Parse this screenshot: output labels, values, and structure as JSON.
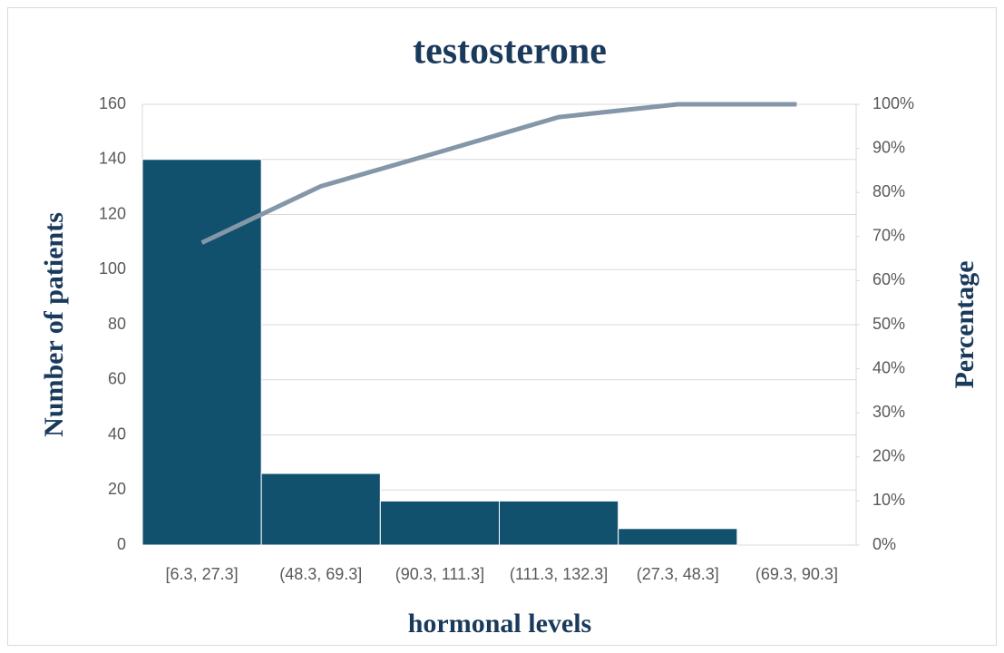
{
  "chart_data": {
    "type": "pareto",
    "title": "testosterone",
    "x_label": "hormonal levels",
    "y_label": "Number of patients",
    "y2_label": "Percentage",
    "categories": [
      "[6.3, 27.3]",
      "(48.3, 69.3]",
      "(90.3, 111.3]",
      "(111.3, 132.3]",
      "(27.3, 48.3]",
      "(69.3, 90.3]"
    ],
    "series": [
      {
        "color": "#12516e",
        "values": [
          140,
          26,
          16,
          16,
          6,
          0
        ]
      },
      {
        "color": "#8497a8",
        "axis": "y2",
        "values": [
          68.6,
          81.4,
          89.2,
          97.1,
          100,
          100
        ]
      }
    ],
    "ylim": [
      0,
      160
    ],
    "yticks": [
      0,
      20,
      40,
      60,
      80,
      100,
      120,
      140,
      160
    ],
    "y2lim": [
      0,
      100
    ],
    "y2ticks": [
      {
        "value": 0,
        "label": "0%"
      },
      {
        "value": 10,
        "label": "10%"
      },
      {
        "value": 20,
        "label": "20%"
      },
      {
        "value": 30,
        "label": "30%"
      },
      {
        "value": 40,
        "label": "40%"
      },
      {
        "value": 50,
        "label": "50%"
      },
      {
        "value": 60,
        "label": "60%"
      },
      {
        "value": 70,
        "label": "70%"
      },
      {
        "value": 80,
        "label": "80%"
      },
      {
        "value": 90,
        "label": "90%"
      },
      {
        "value": 100,
        "label": "100%"
      }
    ],
    "grid": true
  }
}
